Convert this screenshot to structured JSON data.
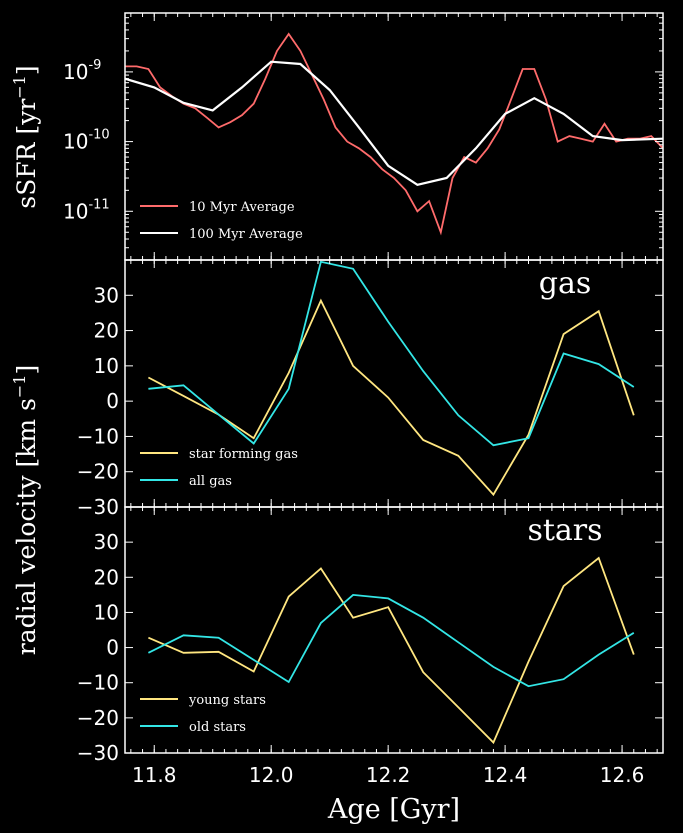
{
  "colors": {
    "background": "#000000",
    "axes": "#ffffff",
    "red": "#ff6b6b",
    "white": "#ffffff",
    "yellow": "#ffe680",
    "cyan": "#33e6e6"
  },
  "chart_data": [
    {
      "type": "line",
      "panel": "top",
      "yscale": "log",
      "ylabel_main": "sSFR [yr",
      "ylabel_sup": "−1",
      "ylabel_end": "]",
      "ylim": [
        2e-12,
        7e-09
      ],
      "xlim": [
        11.75,
        12.67
      ],
      "yticks": [
        {
          "value": 1e-09,
          "base": "10",
          "exp": "-9"
        },
        {
          "value": 1e-10,
          "base": "10",
          "exp": "-10"
        },
        {
          "value": 1e-11,
          "base": "10",
          "exp": "-11"
        }
      ],
      "series": [
        {
          "name": "10 Myr Average",
          "color": "#ff6b6b",
          "x": [
            11.75,
            11.77,
            11.79,
            11.81,
            11.83,
            11.85,
            11.87,
            11.89,
            11.91,
            11.93,
            11.95,
            11.97,
            11.99,
            12.01,
            12.03,
            12.05,
            12.07,
            12.09,
            12.11,
            12.13,
            12.15,
            12.17,
            12.19,
            12.21,
            12.23,
            12.25,
            12.27,
            12.29,
            12.31,
            12.33,
            12.35,
            12.37,
            12.39,
            12.41,
            12.43,
            12.45,
            12.47,
            12.49,
            12.51,
            12.53,
            12.55,
            12.57,
            12.59,
            12.61,
            12.63,
            12.65,
            12.67
          ],
          "y": [
            1.2e-09,
            1.2e-09,
            1.1e-09,
            6e-10,
            4.5e-10,
            3.5e-10,
            3e-10,
            2.2e-10,
            1.6e-10,
            1.9e-10,
            2.4e-10,
            3.5e-10,
            8e-10,
            2e-09,
            3.5e-09,
            2e-09,
            9e-10,
            4e-10,
            1.6e-10,
            1e-10,
            8e-11,
            6e-11,
            4e-11,
            3e-11,
            2e-11,
            1e-11,
            1.4e-11,
            5e-12,
            3e-11,
            6e-11,
            5e-11,
            8e-11,
            1.5e-10,
            4e-10,
            1.1e-09,
            1.1e-09,
            4e-10,
            1e-10,
            1.2e-10,
            1.1e-10,
            1e-10,
            1.8e-10,
            1e-10,
            1.1e-10,
            1.1e-10,
            1.2e-10,
            8e-11
          ]
        },
        {
          "name": "100 Myr Average",
          "color": "#ffffff",
          "x": [
            11.75,
            11.8,
            11.85,
            11.9,
            11.95,
            12.0,
            12.05,
            12.1,
            12.15,
            12.2,
            12.25,
            12.3,
            12.35,
            12.4,
            12.45,
            12.5,
            12.55,
            12.6,
            12.67
          ],
          "y": [
            8e-10,
            6e-10,
            3.6e-10,
            2.8e-10,
            6e-10,
            1.4e-09,
            1.3e-09,
            5.5e-10,
            1.6e-10,
            4.5e-11,
            2.4e-11,
            3e-11,
            8e-11,
            2.5e-10,
            4.2e-10,
            2.5e-10,
            1.2e-10,
            1.05e-10,
            1.1e-10
          ]
        }
      ],
      "legend_placement": "lower-left"
    },
    {
      "type": "line",
      "panel": "middle",
      "panel_label": "gas",
      "ylim": [
        -30,
        40
      ],
      "xlim": [
        11.75,
        12.67
      ],
      "yticks": [
        30,
        20,
        10,
        0,
        -10,
        -20,
        -30
      ],
      "series": [
        {
          "name": "star forming gas",
          "color": "#ffe680",
          "x": [
            11.79,
            11.85,
            11.91,
            11.97,
            12.03,
            12.085,
            12.14,
            12.2,
            12.26,
            12.32,
            12.38,
            12.44,
            12.5,
            12.56,
            12.62
          ],
          "y": [
            6.7,
            1.5,
            -3.8,
            -10.5,
            8,
            28.5,
            10,
            1,
            -11,
            -15.5,
            -26.5,
            -9.5,
            19,
            25.5,
            -4
          ]
        },
        {
          "name": "all gas",
          "color": "#33e6e6",
          "x": [
            11.79,
            11.85,
            11.91,
            11.97,
            12.03,
            12.085,
            12.14,
            12.2,
            12.26,
            12.32,
            12.38,
            12.44,
            12.5,
            12.56,
            12.62
          ],
          "y": [
            3.5,
            4.5,
            -3.8,
            -12,
            3.5,
            39.5,
            37.5,
            22.5,
            8.5,
            -4,
            -12.5,
            -10.5,
            13.5,
            10.5,
            4
          ]
        }
      ],
      "legend_placement": "lower-left"
    },
    {
      "type": "line",
      "panel": "bottom",
      "panel_label": "stars",
      "ylim": [
        -30,
        40
      ],
      "xlim": [
        11.75,
        12.67
      ],
      "yticks": [
        30,
        20,
        10,
        0,
        -10,
        -20,
        -30
      ],
      "xticks": [
        11.8,
        12.0,
        12.2,
        12.4,
        12.6
      ],
      "xlabel": "Age [Gyr]",
      "series": [
        {
          "name": "young stars",
          "color": "#ffe680",
          "x": [
            11.79,
            11.85,
            11.91,
            11.97,
            12.03,
            12.085,
            12.14,
            12.2,
            12.26,
            12.32,
            12.38,
            12.44,
            12.5,
            12.56,
            12.62
          ],
          "y": [
            2.8,
            -1.5,
            -1.2,
            -6.8,
            14.5,
            22.5,
            8.5,
            11.5,
            -7,
            -17,
            -27,
            -4,
            17.5,
            25.5,
            -2
          ]
        },
        {
          "name": "old stars",
          "color": "#33e6e6",
          "x": [
            11.79,
            11.85,
            11.91,
            11.97,
            12.03,
            12.085,
            12.14,
            12.2,
            12.26,
            12.32,
            12.38,
            12.44,
            12.5,
            12.56,
            12.62
          ],
          "y": [
            -1.5,
            3.5,
            2.8,
            -3.5,
            -9.8,
            7,
            15,
            14,
            8.5,
            1.5,
            -5.5,
            -11,
            -9,
            -2,
            4.2
          ]
        }
      ],
      "legend_placement": "lower-left"
    }
  ],
  "shared_ylabel": "radial velocity [km s",
  "shared_ylabel_sup": "−1",
  "shared_ylabel_end": "]"
}
